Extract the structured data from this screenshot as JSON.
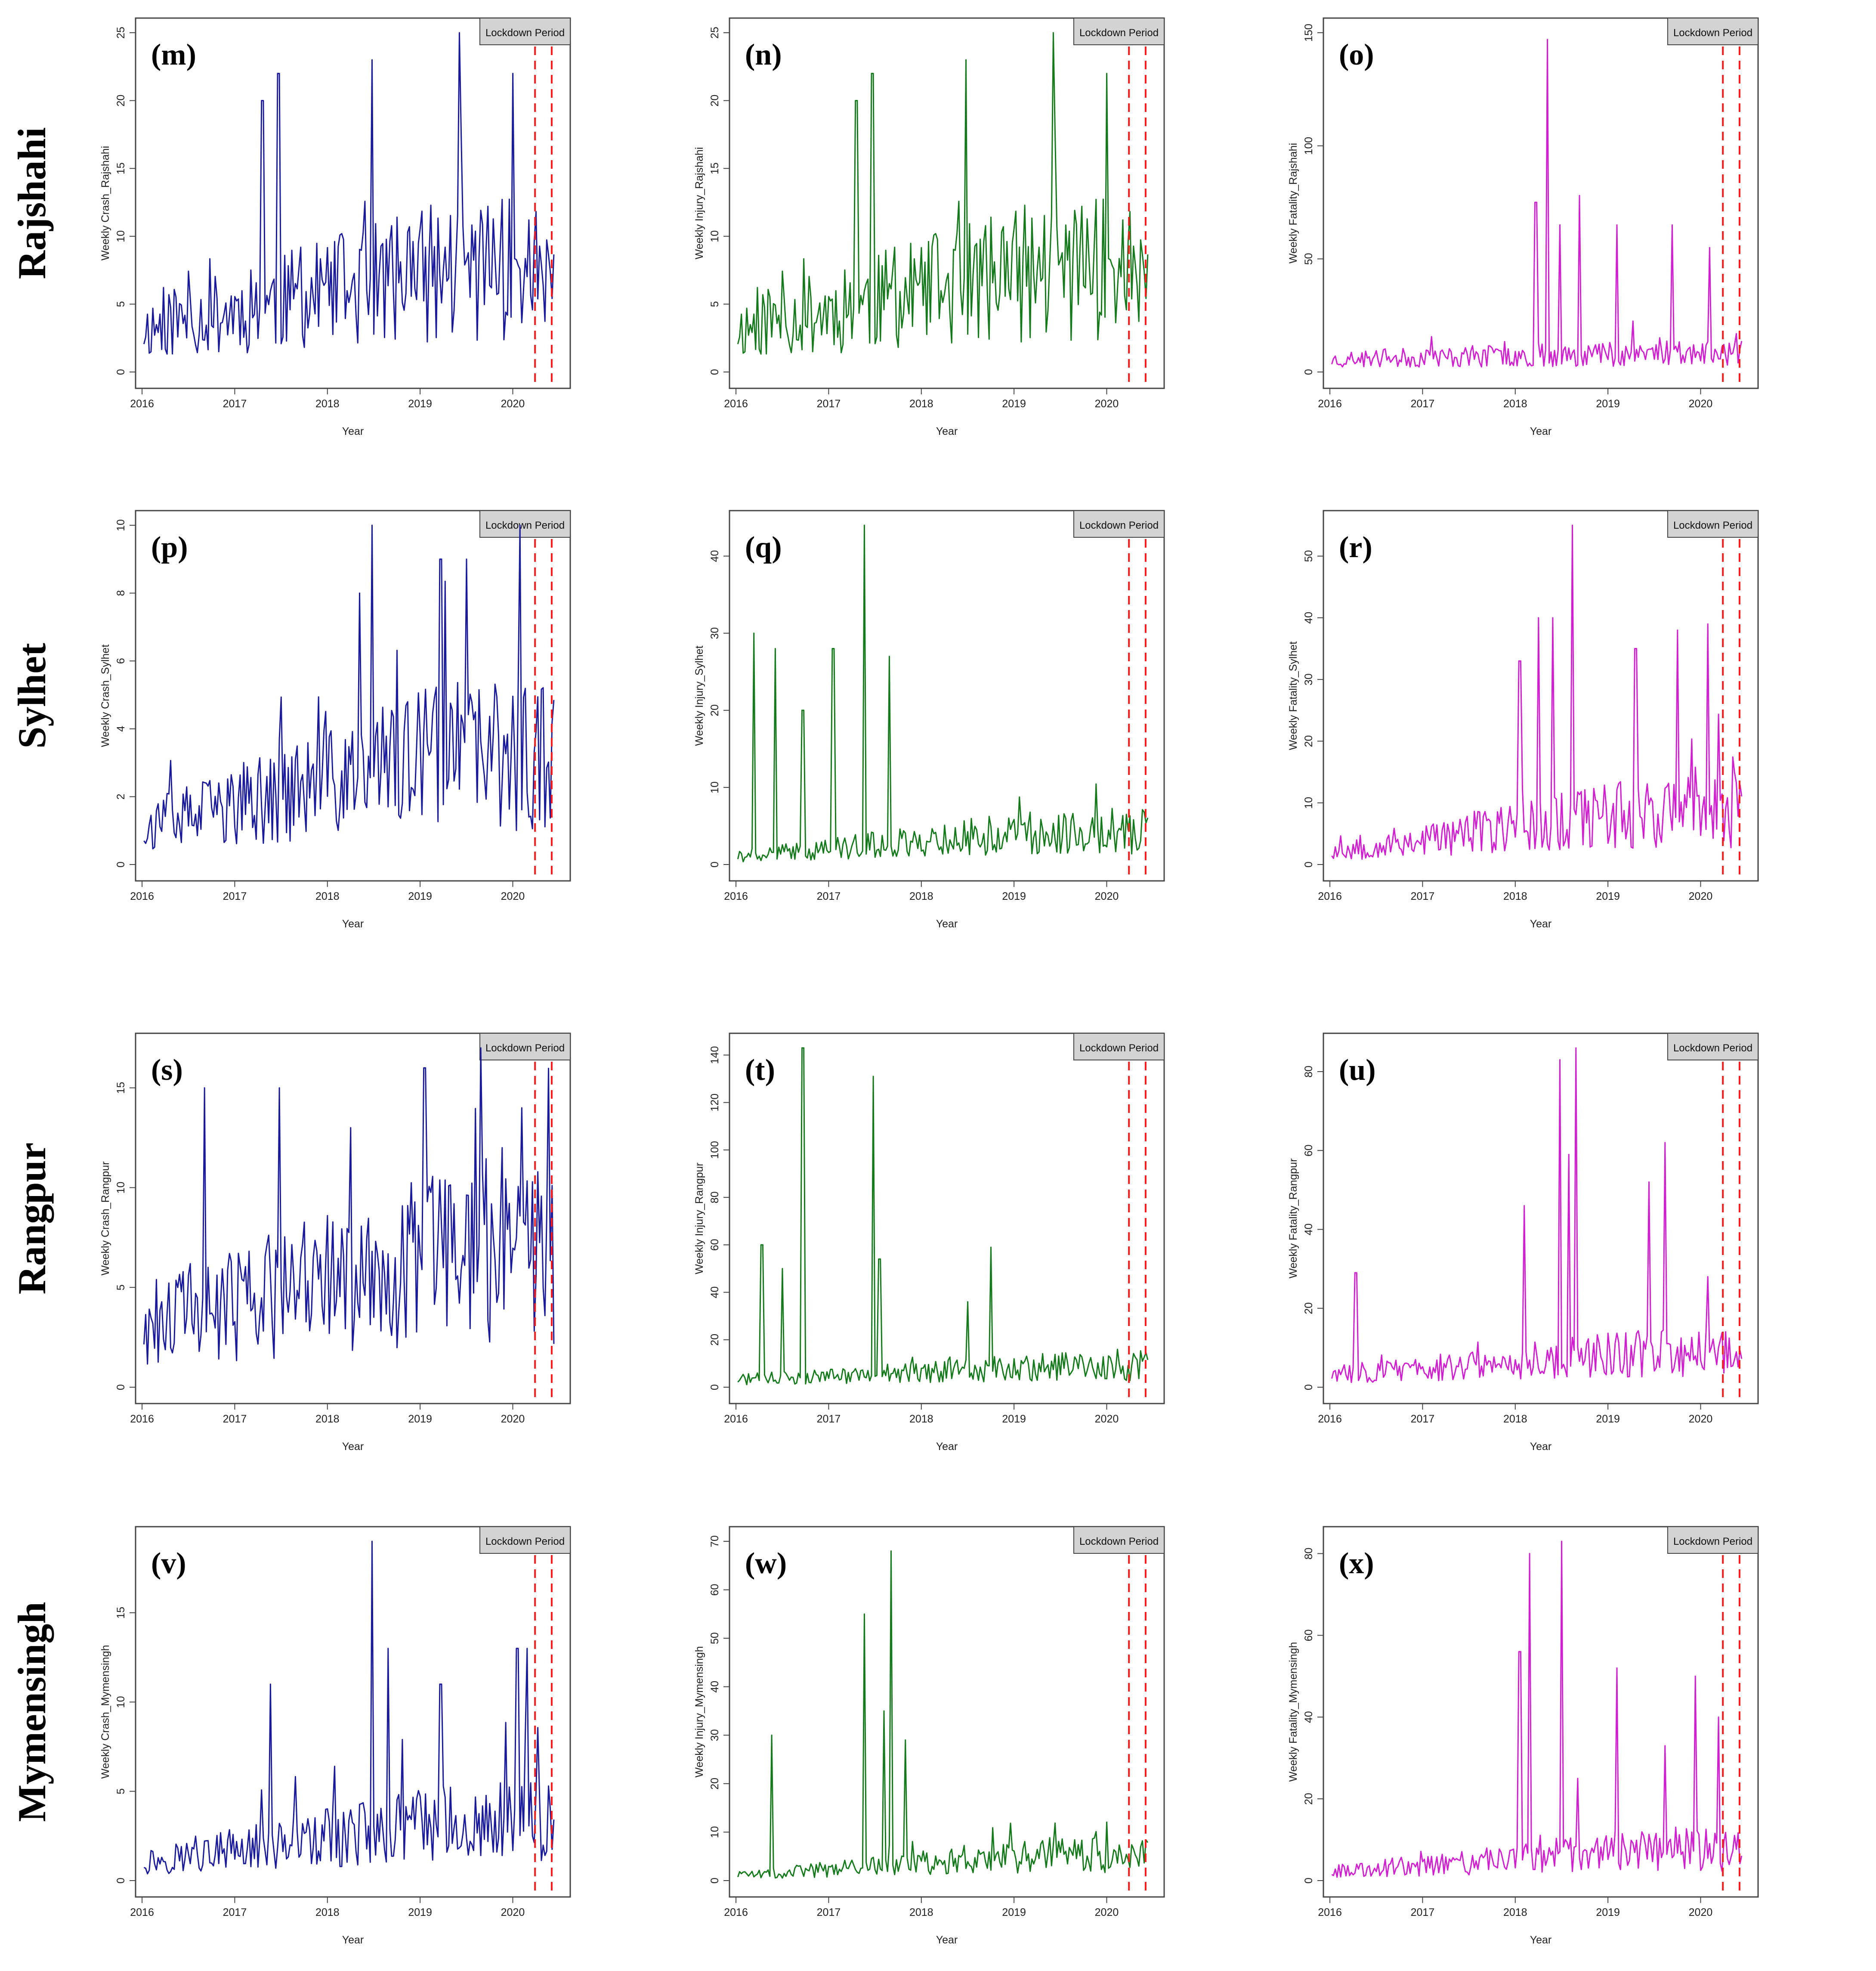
{
  "figure": {
    "rows": [
      "Rajshahi",
      "Sylhet",
      "Rangpur",
      "Mymensingh"
    ],
    "x_label": "Year",
    "x_ticks": [
      "2016",
      "2017",
      "2018",
      "2019",
      "2020"
    ],
    "legend_label": "Lockdown Period",
    "lockdown_start": 2020.24,
    "lockdown_end": 2020.42,
    "colors": {
      "crash": "#1a1a9c",
      "injury": "#157a1c",
      "fatality": "#d11ed1",
      "lockdown": "#ff1a1a"
    }
  },
  "chart_data": [
    {
      "id": "m",
      "label": "(m)",
      "type": "line",
      "ylabel": "Weekly Crash_Rajshahi",
      "series": "crash",
      "ylim": [
        0,
        25
      ],
      "yticks": [
        0,
        5,
        10,
        15,
        20,
        25
      ],
      "baseline": 3,
      "trend": 7,
      "peaks": [
        [
          2017.3,
          20
        ],
        [
          2017.47,
          22
        ],
        [
          2018.48,
          23
        ],
        [
          2019.42,
          25
        ],
        [
          2020.0,
          22
        ]
      ],
      "seed": 11
    },
    {
      "id": "n",
      "label": "(n)",
      "type": "line",
      "ylabel": "Weekly Injury_Rajshahi",
      "series": "injury",
      "ylim": [
        0,
        25
      ],
      "yticks": [
        0,
        5,
        10,
        15,
        20,
        25
      ],
      "baseline": 3,
      "trend": 7,
      "peaks": [
        [
          2017.3,
          20
        ],
        [
          2017.47,
          22
        ],
        [
          2018.48,
          23
        ],
        [
          2019.42,
          25
        ],
        [
          2020.0,
          22
        ]
      ],
      "seed": 11
    },
    {
      "id": "o",
      "label": "(o)",
      "type": "line",
      "ylabel": "Weekly Fatality_Rajshahi",
      "series": "fatality",
      "ylim": [
        0,
        150
      ],
      "yticks": [
        0,
        50,
        100,
        150
      ],
      "baseline": 5,
      "trend": 8,
      "peaks": [
        [
          2018.22,
          75
        ],
        [
          2018.35,
          147
        ],
        [
          2018.7,
          78
        ],
        [
          2018.48,
          65
        ],
        [
          2019.1,
          65
        ],
        [
          2019.7,
          65
        ],
        [
          2020.1,
          55
        ]
      ],
      "seed": 23
    },
    {
      "id": "p",
      "label": "(p)",
      "type": "line",
      "ylabel": "Weekly Crash_Sylhet",
      "series": "crash",
      "ylim": [
        0,
        10
      ],
      "yticks": [
        0,
        2,
        4,
        6,
        8,
        10
      ],
      "baseline": 1,
      "trend": 3,
      "peaks": [
        [
          2018.35,
          8
        ],
        [
          2018.48,
          10
        ],
        [
          2019.22,
          9
        ],
        [
          2019.5,
          9
        ],
        [
          2020.08,
          10
        ]
      ],
      "seed": 37
    },
    {
      "id": "q",
      "label": "(q)",
      "type": "line",
      "ylabel": "Weekly Injury_Sylhet",
      "series": "injury",
      "ylim": [
        0,
        44
      ],
      "yticks": [
        0,
        10,
        20,
        30,
        40
      ],
      "baseline": 1,
      "trend": 4,
      "peaks": [
        [
          2016.2,
          30
        ],
        [
          2016.42,
          28
        ],
        [
          2016.72,
          20
        ],
        [
          2017.05,
          28
        ],
        [
          2017.38,
          44
        ],
        [
          2017.65,
          27
        ]
      ],
      "seed": 41
    },
    {
      "id": "r",
      "label": "(r)",
      "type": "line",
      "ylabel": "Weekly Fatality_Sylhet",
      "series": "fatality",
      "ylim": [
        0,
        55
      ],
      "yticks": [
        0,
        10,
        20,
        30,
        40,
        50
      ],
      "baseline": 2,
      "trend": 8,
      "peaks": [
        [
          2018.05,
          33
        ],
        [
          2018.25,
          40
        ],
        [
          2018.4,
          40
        ],
        [
          2018.62,
          55
        ],
        [
          2019.3,
          35
        ],
        [
          2019.75,
          38
        ],
        [
          2020.08,
          39
        ]
      ],
      "seed": 53
    },
    {
      "id": "s",
      "label": "(s)",
      "type": "line",
      "ylabel": "Weekly Crash_Rangpur",
      "series": "crash",
      "ylim": [
        0,
        17
      ],
      "yticks": [
        0,
        5,
        10,
        15
      ],
      "baseline": 3,
      "trend": 6,
      "peaks": [
        [
          2016.68,
          15
        ],
        [
          2017.48,
          15
        ],
        [
          2018.25,
          13
        ],
        [
          2019.05,
          16
        ],
        [
          2019.65,
          17
        ],
        [
          2020.1,
          14
        ]
      ],
      "seed": 61
    },
    {
      "id": "t",
      "label": "(t)",
      "type": "line",
      "ylabel": "Weekly Injury_Rangpur",
      "series": "injury",
      "ylim": [
        0,
        143
      ],
      "yticks": [
        0,
        20,
        40,
        60,
        80,
        100,
        120,
        140
      ],
      "baseline": 3,
      "trend": 8,
      "peaks": [
        [
          2016.28,
          60
        ],
        [
          2016.5,
          50
        ],
        [
          2016.72,
          143
        ],
        [
          2017.48,
          131
        ],
        [
          2017.55,
          54
        ],
        [
          2018.5,
          36
        ],
        [
          2018.75,
          59
        ]
      ],
      "seed": 71
    },
    {
      "id": "u",
      "label": "(u)",
      "type": "line",
      "ylabel": "Weekly Fatality_Rangpur",
      "series": "fatality",
      "ylim": [
        0,
        86
      ],
      "yticks": [
        0,
        20,
        40,
        60,
        80
      ],
      "baseline": 3,
      "trend": 8,
      "peaks": [
        [
          2016.28,
          29
        ],
        [
          2018.1,
          46
        ],
        [
          2018.48,
          83
        ],
        [
          2018.65,
          86
        ],
        [
          2018.58,
          59
        ],
        [
          2019.45,
          52
        ],
        [
          2019.62,
          62
        ],
        [
          2020.08,
          28
        ]
      ],
      "seed": 83
    },
    {
      "id": "v",
      "label": "(v)",
      "type": "line",
      "ylabel": "Weekly Crash_Mymensingh",
      "series": "crash",
      "ylim": [
        0,
        19
      ],
      "yticks": [
        0,
        5,
        10,
        15
      ],
      "baseline": 1,
      "trend": 3,
      "peaks": [
        [
          2017.38,
          11
        ],
        [
          2018.48,
          19
        ],
        [
          2018.65,
          13
        ],
        [
          2019.22,
          11
        ],
        [
          2020.05,
          13
        ],
        [
          2020.15,
          13
        ]
      ],
      "seed": 97
    },
    {
      "id": "w",
      "label": "(w)",
      "type": "line",
      "ylabel": "Weekly Injury_Mymensingh",
      "series": "injury",
      "ylim": [
        0,
        70
      ],
      "yticks": [
        0,
        10,
        20,
        30,
        40,
        50,
        60,
        70
      ],
      "baseline": 1,
      "trend": 5,
      "peaks": [
        [
          2016.38,
          30
        ],
        [
          2017.38,
          55
        ],
        [
          2017.68,
          68
        ],
        [
          2017.6,
          35
        ],
        [
          2017.82,
          29
        ]
      ],
      "seed": 101
    },
    {
      "id": "x",
      "label": "(x)",
      "type": "line",
      "ylabel": "Weekly Fatality_Mymensingh",
      "series": "fatality",
      "ylim": [
        0,
        83
      ],
      "yticks": [
        0,
        20,
        40,
        60,
        80
      ],
      "baseline": 2,
      "trend": 7,
      "peaks": [
        [
          2018.05,
          56
        ],
        [
          2018.15,
          80
        ],
        [
          2018.5,
          83
        ],
        [
          2018.68,
          25
        ],
        [
          2019.1,
          52
        ],
        [
          2019.62,
          33
        ],
        [
          2019.95,
          50
        ],
        [
          2020.2,
          40
        ]
      ],
      "seed": 113
    }
  ]
}
